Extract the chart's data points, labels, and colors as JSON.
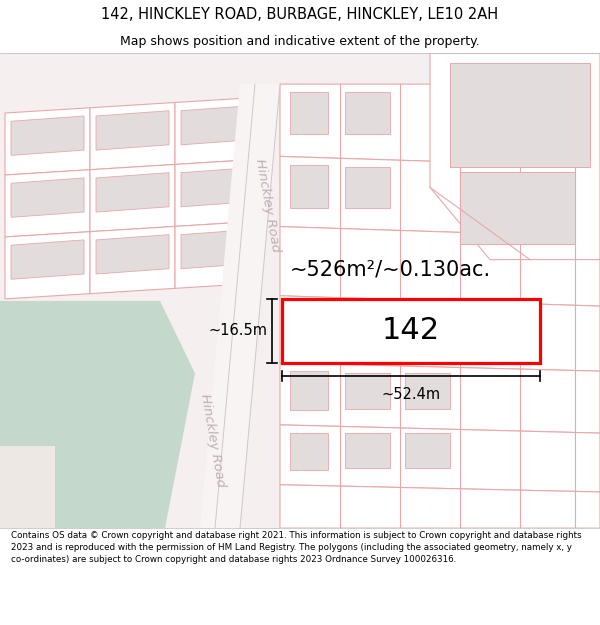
{
  "title_line1": "142, HINCKLEY ROAD, BURBAGE, HINCKLEY, LE10 2AH",
  "title_line2": "Map shows position and indicative extent of the property.",
  "footer_text": "Contains OS data © Crown copyright and database right 2021. This information is subject to Crown copyright and database rights 2023 and is reproduced with the permission of HM Land Registry. The polygons (including the associated geometry, namely x, y co-ordinates) are subject to Crown copyright and database rights 2023 Ordnance Survey 100026316.",
  "area_label": "~526m²/~0.130ac.",
  "house_number": "142",
  "width_label": "~52.4m",
  "height_label": "~16.5m",
  "bg_color": "#f5efef",
  "lc": "#e8a8a8",
  "road_label_color": "#c0b0b0",
  "plot_fill": "#f0eaea",
  "building_fill": "#e2dcdc",
  "green_fill": "#c5d8cc",
  "beige_fill": "#ede8e4",
  "highlight_fill": "#ffffff",
  "highlight_edge": "#ff0000",
  "dim_color": "#000000",
  "road_fill": "#f8f4f4",
  "white_fill": "#ffffff",
  "title_fontsize": 10.5,
  "subtitle_fontsize": 9,
  "footer_fontsize": 6.3,
  "area_fontsize": 15,
  "number_fontsize": 22,
  "dim_fontsize": 10.5,
  "road_fontsize": 9.5
}
